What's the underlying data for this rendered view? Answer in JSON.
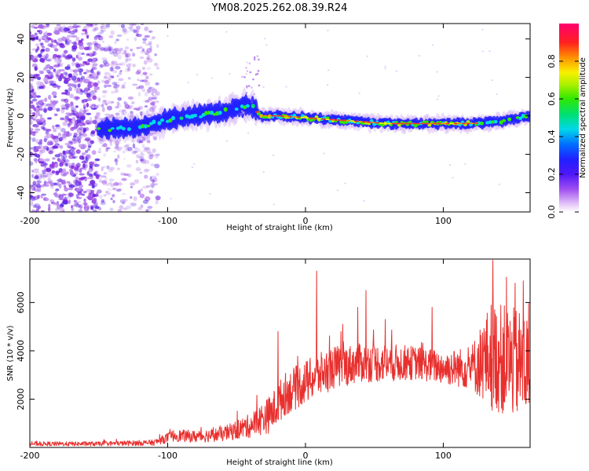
{
  "title": "YM08.2025.262.08.39.R24",
  "chart_data": [
    {
      "type": "heatmap",
      "name": "spectrogram",
      "xlabel": "Height of straight line (km)",
      "ylabel": "Frequency (Hz)",
      "xlim": [
        -200,
        163
      ],
      "ylim": [
        -50,
        48
      ],
      "xticks": [
        -200,
        -100,
        0,
        100
      ],
      "yticks": [
        -40,
        -20,
        0,
        20,
        40
      ],
      "ridge": {
        "x": [
          -150,
          -120,
          -100,
          -80,
          -60,
          -45,
          -38,
          -33,
          -20,
          0,
          20,
          40,
          60,
          80,
          100,
          120,
          140,
          163
        ],
        "freq_hz": [
          -7,
          -6,
          -2,
          0,
          2,
          5,
          5,
          0,
          0,
          -1,
          -2,
          -3,
          -4,
          -4,
          -4,
          -4,
          -3,
          0
        ]
      },
      "noise_region_x": [
        -200,
        -107
      ],
      "colorbar": {
        "label": "Normalized spectral amplitude",
        "range": [
          0.0,
          1.0
        ],
        "ticks": [
          "0.0",
          "0.2",
          "0.4",
          "0.6",
          "0.8"
        ]
      }
    },
    {
      "type": "line",
      "name": "snr",
      "xlabel": "Height of straight line (km)",
      "ylabel": "SNR (10 * v/v)",
      "xlim": [
        -200,
        163
      ],
      "ylim": [
        0,
        7800
      ],
      "xticks": [
        -200,
        -100,
        0,
        100
      ],
      "yticks": [
        2000,
        4000,
        6000
      ],
      "color": "#e8302e",
      "envelope": {
        "x": [
          -200,
          -150,
          -110,
          -95,
          -80,
          -60,
          -40,
          -25,
          -15,
          0,
          20,
          40,
          60,
          80,
          100,
          120,
          135,
          150,
          163
        ],
        "mean": [
          150,
          150,
          200,
          500,
          450,
          550,
          900,
          1400,
          2200,
          2700,
          3300,
          3500,
          3500,
          3500,
          3300,
          3300,
          3800,
          3500,
          3300
        ],
        "amplitude": [
          90,
          90,
          120,
          250,
          250,
          300,
          500,
          800,
          900,
          900,
          900,
          800,
          800,
          700,
          700,
          900,
          2300,
          2300,
          2300
        ]
      },
      "spikes": [
        {
          "x": 8,
          "y": 7300
        },
        {
          "x": -20,
          "y": 4800
        },
        {
          "x": 44,
          "y": 6500
        },
        {
          "x": 38,
          "y": 5800
        },
        {
          "x": 27,
          "y": 5100
        },
        {
          "x": 58,
          "y": 5300
        },
        {
          "x": 92,
          "y": 5800
        },
        {
          "x": 136,
          "y": 7750
        },
        {
          "x": 146,
          "y": 7050
        },
        {
          "x": 152,
          "y": 6800
        },
        {
          "x": 158,
          "y": 6900
        }
      ]
    }
  ]
}
